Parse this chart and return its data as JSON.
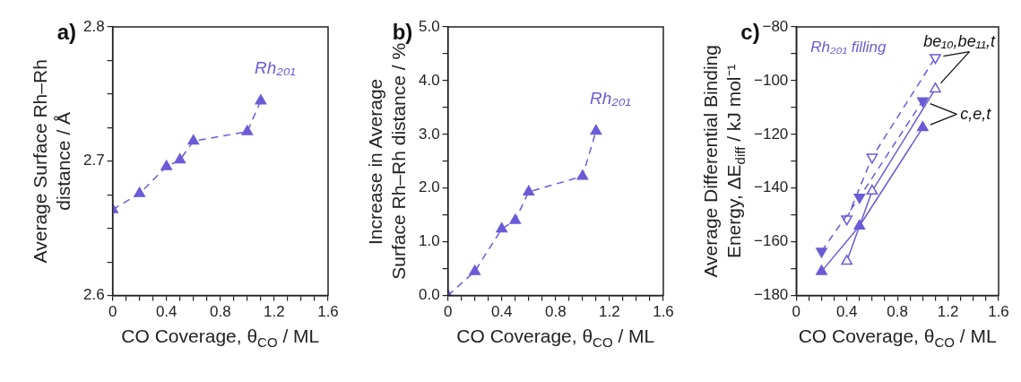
{
  "chart_data": [
    {
      "type": "line",
      "title": "a)",
      "xlabel": "CO Coverage, θ$_{CO}$ / ML",
      "ylabel": "Average Surface Rh–Rh\ndistance / Å",
      "x": [
        0,
        0.2,
        0.4,
        0.5,
        0.6,
        1.0,
        1.1
      ],
      "series": [
        {
          "color": "#6b5bd6",
          "values": [
            2.664,
            2.676,
            2.696,
            2.701,
            2.715,
            2.722,
            2.745
          ],
          "marker": "triangle",
          "line_style": "dashed"
        }
      ],
      "annotations": [
        {
          "text": "Rh₂₀₁",
          "x": 1.1,
          "y": 2.745
        }
      ],
      "xlim": [
        0,
        1.6
      ],
      "xticks": [
        0,
        {
          "value": 0.1,
          "label": null
        },
        {
          "value": 0.2,
          "label": null
        },
        {
          "value": 0.3,
          "label": null
        },
        0.4,
        {
          "value": 0.5,
          "label": null
        },
        {
          "value": 0.6,
          "label": null
        },
        {
          "value": 0.7,
          "label": null
        },
        0.8,
        {
          "value": 0.9,
          "label": null
        },
        {
          "value": 1.0,
          "label": null
        },
        {
          "value": 1.1,
          "label": null
        },
        1.2,
        {
          "value": 1.3,
          "label": null
        },
        {
          "value": 1.4,
          "label": null
        },
        {
          "value": 1.5,
          "label": null
        },
        1.6
      ],
      "ylim": [
        2.6,
        2.8
      ],
      "yticks": [
        2.6,
        {
          "value": 2.625,
          "label": null
        },
        {
          "value": 2.65,
          "label": null
        },
        {
          "value": 2.675,
          "label": null
        },
        2.7,
        {
          "value": 2.725,
          "label": null
        },
        {
          "value": 2.75,
          "label": null
        },
        {
          "value": 2.775,
          "label": null
        },
        2.8
      ],
      "grid": false,
      "legend": false
    },
    {
      "type": "line",
      "title": "b)",
      "xlabel": "CO Coverage, θ$_{CO}$ / ML",
      "ylabel": "Increase in Average\nSurface Rh–Rh distance / %",
      "x": [
        0,
        0.2,
        0.4,
        0.5,
        0.6,
        1.0,
        1.1
      ],
      "series": [
        {
          "color": "#6b5bd6",
          "values": [
            0,
            0.45,
            1.24,
            1.4,
            1.93,
            2.22,
            3.06
          ],
          "marker": "triangle",
          "line_style": "dashed"
        }
      ],
      "annotations": [
        {
          "text": "Rh₂₀₁",
          "x": 1.1,
          "y": 3.06
        }
      ],
      "xlim": [
        0,
        1.6
      ],
      "xticks": [
        0,
        {
          "value": 0.1,
          "label": null
        },
        {
          "value": 0.2,
          "label": null
        },
        {
          "value": 0.3,
          "label": null
        },
        0.4,
        {
          "value": 0.5,
          "label": null
        },
        {
          "value": 0.6,
          "label": null
        },
        {
          "value": 0.7,
          "label": null
        },
        0.8,
        {
          "value": 0.9,
          "label": null
        },
        {
          "value": 1.0,
          "label": null
        },
        {
          "value": 1.1,
          "label": null
        },
        1.2,
        {
          "value": 1.3,
          "label": null
        },
        {
          "value": 1.4,
          "label": null
        },
        {
          "value": 1.5,
          "label": null
        },
        1.6
      ],
      "ylim": [
        0,
        5
      ],
      "yticks": [
        {
          "value": 0,
          "label": "0.0"
        },
        {
          "value": 0.5,
          "label": null
        },
        {
          "value": 1,
          "label": "1.0"
        },
        {
          "value": 1.5,
          "label": null
        },
        {
          "value": 2,
          "label": "2.0"
        },
        {
          "value": 2.5,
          "label": null
        },
        {
          "value": 3,
          "label": "3.0"
        },
        {
          "value": 3.5,
          "label": null
        },
        {
          "value": 4,
          "label": "4.0"
        },
        {
          "value": 4.5,
          "label": null
        },
        {
          "value": 5,
          "label": "5.0"
        }
      ],
      "grid": false,
      "legend": false
    },
    {
      "type": "line",
      "title": "c)",
      "xlabel": "CO Coverage, θ$_{CO}$ / ML",
      "ylabel": "Average Differential Binding\nEnergy, ΔE$_{diff}$ / kJ mol⁻¹",
      "series": [
        {
          "name": "c,e,t",
          "color": "#6b5bd6",
          "x": [
            0.2,
            0.5,
            1.0
          ],
          "values": [
            -171,
            -154.1,
            -117.5
          ],
          "marker": "triangle",
          "line_style": "solid"
        },
        {
          "color": "#6b5bd6",
          "x": [
            0.2,
            0.5,
            1.0
          ],
          "values": [
            -163.5,
            -143.4,
            -107.5
          ],
          "marker": "triangle-down",
          "line_style": "dashed"
        },
        {
          "name": "be₁₀,be₁₁,t",
          "color": "#6b5bd6",
          "x": [
            0.4,
            0.6,
            1.1
          ],
          "values": [
            -167.2,
            -141.1,
            -103.1
          ],
          "marker": "triangle-open",
          "line_style": "solid"
        },
        {
          "color": "#6b5bd6",
          "x": [
            0.4,
            0.6,
            1.1
          ],
          "values": [
            -151.5,
            -128.5,
            -91.4
          ],
          "marker": "triangle-down-open",
          "line_style": "dashed"
        }
      ],
      "annotations": [
        "Rh₂₀₁ filling"
      ],
      "xlim": [
        0,
        1.6
      ],
      "xticks": [
        0,
        {
          "value": 0.1,
          "label": null
        },
        {
          "value": 0.2,
          "label": null
        },
        {
          "value": 0.3,
          "label": null
        },
        0.4,
        {
          "value": 0.5,
          "label": null
        },
        {
          "value": 0.6,
          "label": null
        },
        {
          "value": 0.7,
          "label": null
        },
        0.8,
        {
          "value": 0.9,
          "label": null
        },
        {
          "value": 1.0,
          "label": null
        },
        {
          "value": 1.1,
          "label": null
        },
        1.2,
        {
          "value": 1.3,
          "label": null
        },
        {
          "value": 1.4,
          "label": null
        },
        {
          "value": 1.5,
          "label": null
        },
        1.6
      ],
      "ylim": [
        -180,
        -80
      ],
      "yticks": [
        {
          "value": -180,
          "label": "−180"
        },
        {
          "value": -170,
          "label": null
        },
        {
          "value": -160,
          "label": "−160"
        },
        {
          "value": -150,
          "label": null
        },
        {
          "value": -140,
          "label": "−140"
        },
        {
          "value": -130,
          "label": null
        },
        {
          "value": -120,
          "label": "−120"
        },
        {
          "value": -110,
          "label": null
        },
        {
          "value": -100,
          "label": "−100"
        },
        {
          "value": -90,
          "label": null
        },
        {
          "value": -80,
          "label": "−80"
        }
      ],
      "grid": false,
      "legend": false
    }
  ]
}
